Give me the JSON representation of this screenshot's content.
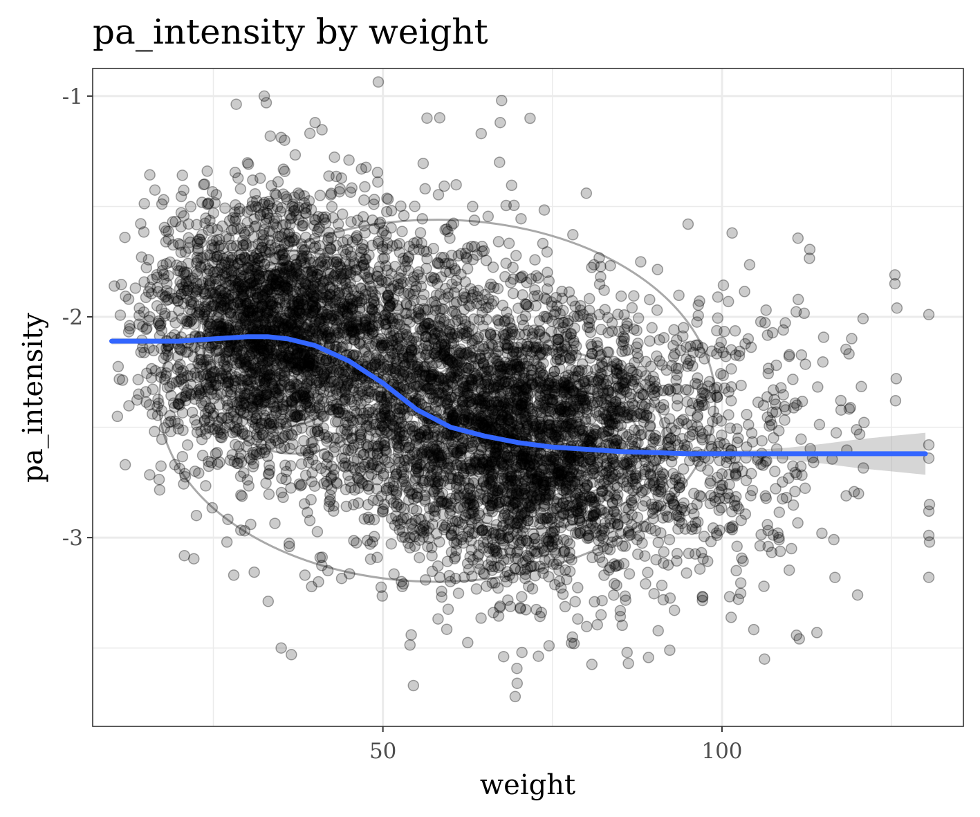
{
  "chart_data": {
    "type": "scatter",
    "title": "pa_intensity by weight",
    "xlabel": "weight",
    "ylabel": "pa_intensity",
    "xlim": [
      7.2,
      135.6
    ],
    "ylim": [
      -3.855,
      -0.875
    ],
    "x_ticks": [
      {
        "value": 50,
        "label": "50"
      },
      {
        "value": 100,
        "label": "100"
      }
    ],
    "x_minor": [
      25,
      75,
      125
    ],
    "y_ticks": [
      {
        "value": -3,
        "label": "-3"
      },
      {
        "value": -2,
        "label": "-2"
      },
      {
        "value": -1,
        "label": "-1"
      }
    ],
    "y_minor": [
      -3.5,
      -2.5,
      -1.5
    ],
    "grid": true,
    "point_color": "#000000",
    "point_opacity": 0.2,
    "smooth_color": "#3366FF",
    "band_color": "#999999",
    "contour_color": "#9a9a9a",
    "clusters": [
      {
        "name": "",
        "cx": 33,
        "cy": -2.06,
        "sx": 8.5,
        "sy": 0.3,
        "n": 2300
      },
      {
        "name": "",
        "cx": 73,
        "cy": -2.58,
        "sx": 11,
        "sy": 0.32,
        "n": 2600
      },
      {
        "name": "",
        "cx": 55,
        "cy": -2.3,
        "sx": 10,
        "sy": 0.35,
        "n": 1400
      },
      {
        "name": "",
        "cx": 100,
        "cy": -2.55,
        "sx": 8,
        "sy": 0.32,
        "n": 300
      },
      {
        "name": "",
        "cx": 118,
        "cy": -2.6,
        "sx": 6,
        "sy": 0.35,
        "n": 50
      }
    ],
    "outliers": [
      [
        32.5,
        -1.0
      ],
      [
        32.8,
        -1.03
      ],
      [
        56.5,
        -1.1
      ],
      [
        67.5,
        -1.02
      ],
      [
        67.3,
        -1.12
      ],
      [
        67.2,
        -1.3
      ],
      [
        64.5,
        -1.17
      ],
      [
        40,
        -1.12
      ],
      [
        35.5,
        -1.2
      ],
      [
        45,
        -1.29
      ],
      [
        80,
        -1.44
      ],
      [
        101.5,
        -1.62
      ],
      [
        95,
        -1.58
      ],
      [
        35,
        -3.5
      ],
      [
        36.5,
        -3.53
      ],
      [
        54.5,
        -3.67
      ],
      [
        69.5,
        -3.72
      ],
      [
        69.8,
        -3.66
      ],
      [
        70.5,
        -3.52
      ],
      [
        74.5,
        -3.49
      ],
      [
        86,
        -3.52
      ],
      [
        86.2,
        -3.57
      ],
      [
        92.3,
        -3.51
      ],
      [
        114,
        -3.43
      ],
      [
        120,
        -3.26
      ],
      [
        125.5,
        -1.81
      ],
      [
        125.5,
        -1.85
      ],
      [
        125.8,
        -1.96
      ],
      [
        125.7,
        -2.28
      ],
      [
        125.6,
        -2.38
      ],
      [
        130.5,
        -1.99
      ],
      [
        130.5,
        -2.58
      ],
      [
        130.5,
        -2.64
      ],
      [
        130.6,
        -2.85
      ],
      [
        130.5,
        -2.88
      ],
      [
        130.5,
        -2.99
      ],
      [
        130.6,
        -3.02
      ],
      [
        130.5,
        -3.18
      ],
      [
        12,
        -2.67
      ],
      [
        16,
        -2.44
      ],
      [
        30.5,
        -2.94
      ],
      [
        28,
        -3.17
      ],
      [
        27,
        -3.02
      ],
      [
        40.5,
        -3.2
      ],
      [
        38.5,
        -3.17
      ],
      [
        12.5,
        -1.92
      ],
      [
        13.5,
        -1.87
      ],
      [
        19,
        -1.57
      ],
      [
        18,
        -1.66
      ],
      [
        22.5,
        -2.9
      ]
    ],
    "smooth_x": [
      10,
      15,
      20,
      25,
      30,
      33,
      36,
      40,
      45,
      50,
      55,
      60,
      65,
      70,
      75,
      80,
      85,
      90,
      95,
      100,
      105,
      110,
      115,
      120,
      125,
      130
    ],
    "smooth_y": [
      -2.11,
      -2.11,
      -2.11,
      -2.1,
      -2.09,
      -2.09,
      -2.1,
      -2.13,
      -2.2,
      -2.3,
      -2.42,
      -2.5,
      -2.54,
      -2.57,
      -2.59,
      -2.6,
      -2.61,
      -2.615,
      -2.62,
      -2.62,
      -2.62,
      -2.62,
      -2.62,
      -2.62,
      -2.62,
      -2.62
    ],
    "band_halfwidth": [
      0.015,
      0.012,
      0.01,
      0.01,
      0.01,
      0.01,
      0.01,
      0.01,
      0.01,
      0.01,
      0.01,
      0.01,
      0.01,
      0.01,
      0.01,
      0.01,
      0.01,
      0.01,
      0.01,
      0.012,
      0.018,
      0.028,
      0.045,
      0.065,
      0.08,
      0.095
    ],
    "contours": [
      {
        "cx": 33,
        "cy": -2.04,
        "rx": 1.8,
        "ry": 0.05
      },
      {
        "cx": 33.3,
        "cy": -2.05,
        "rx": 4,
        "ry": 0.12
      },
      {
        "cx": 33.5,
        "cy": -2.07,
        "rx": 6,
        "ry": 0.19
      },
      {
        "cx": 33.8,
        "cy": -2.09,
        "rx": 7.8,
        "ry": 0.25
      },
      {
        "cx": 34,
        "cy": -2.1,
        "rx": 9.5,
        "ry": 0.31
      },
      {
        "cx": 35,
        "cy": -2.13,
        "rx": 11.5,
        "ry": 0.37
      },
      {
        "cx": 37,
        "cy": -2.16,
        "rx": 14.5,
        "ry": 0.46
      },
      {
        "cx": 76,
        "cy": -2.6,
        "rx": 9,
        "ry": 0.13
      },
      {
        "cx": 73,
        "cy": -2.57,
        "rx": 15,
        "ry": 0.26
      },
      {
        "cx": 72,
        "cy": -2.55,
        "rx": 19.5,
        "ry": 0.41
      },
      {
        "cx": 58,
        "cy": -2.38,
        "rx": 41,
        "ry": 0.82
      }
    ]
  }
}
